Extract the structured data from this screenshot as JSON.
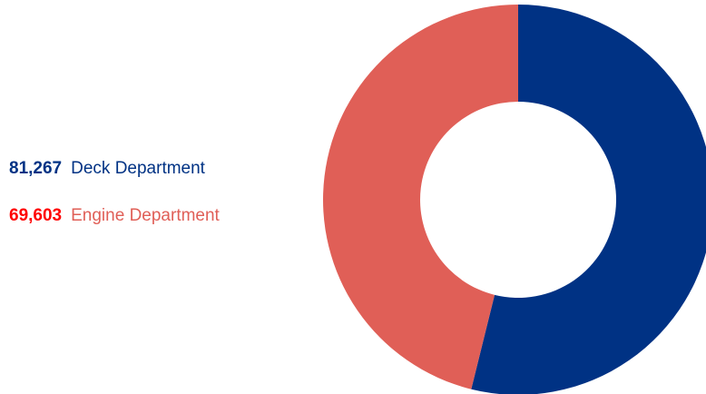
{
  "chart_data": {
    "type": "pie",
    "variant": "donut",
    "title": "",
    "legend_position": "left",
    "slices": [
      {
        "label": "Deck Department",
        "value": 81267,
        "value_text": "81,267",
        "color": "#003284",
        "value_color": "#003284",
        "label_color": "#003284"
      },
      {
        "label": "Engine Department",
        "value": 69603,
        "value_text": "69,603",
        "color": "#e05f57",
        "value_color": "#ff0000",
        "label_color": "#e05f57"
      }
    ]
  }
}
